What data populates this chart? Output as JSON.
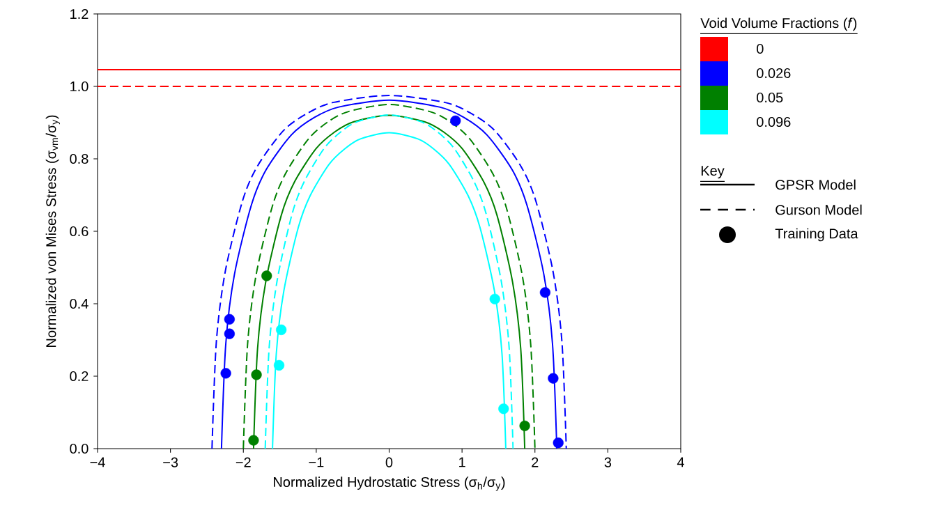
{
  "chart_data": {
    "type": "line",
    "xlabel": "Normalized Hydrostatic Stress (σ$_{h}$/σ$_{y}$)",
    "ylabel": "Normalized von Mises Stress (σ$_{vm}$/σ$_{y}$)",
    "legend_title": "Void Volume Fractions (*f*)",
    "legend": "right",
    "xlim": [
      -4,
      4
    ],
    "xticks": [
      {
        "value": -4,
        "label": "−4"
      },
      {
        "value": -3,
        "label": "−3"
      },
      {
        "value": -2,
        "label": "−2"
      },
      {
        "value": -1,
        "label": "−1"
      },
      0,
      1,
      2,
      3,
      4
    ],
    "ylim": [
      0,
      1.2
    ],
    "yticks": [
      {
        "value": 0,
        "label": "0.0"
      },
      0.2,
      0.4,
      0.6,
      0.8,
      {
        "value": 1,
        "label": "1.0"
      },
      1.2
    ],
    "marker": "none",
    "annotations": [
      "Key",
      "GPSR Model",
      "Gurson Model",
      "Training Data"
    ],
    "series": [
      {
        "name": "0",
        "color": "#ff0000",
        "line_style": "solid",
        "x": [
          -4,
          4
        ],
        "values": [
          1.046,
          1.046
        ]
      },
      {
        "color": "#ff0000",
        "line_style": "dashed",
        "x": [
          -4,
          4
        ],
        "values": [
          1.0,
          1.0
        ]
      },
      {
        "name": "0.026",
        "color": "#0000ff",
        "line_style": "solid",
        "x": [
          -2.3,
          -2.241,
          -2.122,
          -1.889,
          -1.687,
          -1.341,
          -1.027,
          -0.69,
          0,
          0.69,
          1.027,
          1.341,
          1.687,
          1.889,
          2.122,
          2.241,
          2.3
        ],
        "values": [
          0,
          0.289,
          0.481,
          0.673,
          0.77,
          0.866,
          0.914,
          0.943,
          0.962,
          0.943,
          0.914,
          0.866,
          0.77,
          0.673,
          0.481,
          0.289,
          0
        ]
      },
      {
        "color": "#0000ff",
        "line_style": "dashed",
        "x": [
          -2.43,
          -2.371,
          -2.249,
          -2.013,
          -1.806,
          -1.449,
          -1.118,
          -0.758,
          0,
          0.758,
          1.118,
          1.449,
          1.806,
          2.013,
          2.249,
          2.371,
          2.43
        ],
        "values": [
          0,
          0.293,
          0.488,
          0.683,
          0.78,
          0.878,
          0.926,
          0.956,
          0.975,
          0.956,
          0.926,
          0.878,
          0.78,
          0.683,
          0.488,
          0.293,
          0
        ]
      },
      {
        "name": "0.05",
        "color": "#008000",
        "line_style": "solid",
        "x": [
          -1.86,
          -1.805,
          -1.693,
          -1.48,
          -1.299,
          -1.003,
          -0.748,
          -0.491,
          0,
          0.491,
          0.748,
          1.003,
          1.299,
          1.48,
          1.693,
          1.805,
          1.86
        ],
        "values": [
          0,
          0.276,
          0.46,
          0.644,
          0.736,
          0.828,
          0.874,
          0.902,
          0.92,
          0.902,
          0.874,
          0.828,
          0.736,
          0.644,
          0.46,
          0.276,
          0
        ]
      },
      {
        "color": "#008000",
        "line_style": "dashed",
        "x": [
          -2.0,
          -1.943,
          -1.829,
          -1.608,
          -1.419,
          -1.106,
          -0.832,
          -0.549,
          0,
          0.549,
          0.832,
          1.106,
          1.419,
          1.608,
          1.829,
          1.943,
          2.0
        ],
        "values": [
          0,
          0.285,
          0.475,
          0.665,
          0.76,
          0.855,
          0.903,
          0.931,
          0.95,
          0.931,
          0.903,
          0.855,
          0.76,
          0.665,
          0.475,
          0.285,
          0
        ]
      },
      {
        "name": "0.096",
        "color": "#00ffff",
        "line_style": "solid",
        "x": [
          -1.6,
          -1.548,
          -1.444,
          -1.247,
          -1.084,
          -0.824,
          -0.607,
          -0.394,
          0,
          0.394,
          0.607,
          0.824,
          1.084,
          1.247,
          1.444,
          1.548,
          1.6
        ],
        "values": [
          0,
          0.262,
          0.436,
          0.61,
          0.698,
          0.785,
          0.828,
          0.855,
          0.872,
          0.855,
          0.828,
          0.785,
          0.698,
          0.61,
          0.436,
          0.262,
          0
        ]
      },
      {
        "color": "#00ffff",
        "line_style": "dashed",
        "x": [
          -1.7,
          -1.647,
          -1.539,
          -1.335,
          -1.165,
          -0.891,
          -0.659,
          -0.43,
          0,
          0.43,
          0.659,
          0.891,
          1.165,
          1.335,
          1.539,
          1.647,
          1.7
        ],
        "values": [
          0,
          0.276,
          0.461,
          0.645,
          0.737,
          0.829,
          0.875,
          0.903,
          0.921,
          0.903,
          0.875,
          0.829,
          0.737,
          0.645,
          0.461,
          0.276,
          0
        ]
      },
      {
        "type": "scatter",
        "marker": "circle",
        "color": "#0000ff",
        "x": [
          -2.19,
          -2.19,
          -2.24,
          0.91,
          2.14,
          2.25,
          2.32
        ],
        "values": [
          0.357,
          0.317,
          0.208,
          0.905,
          0.431,
          0.194,
          0.016
        ]
      },
      {
        "type": "scatter",
        "marker": "circle",
        "color": "#008000",
        "x": [
          -1.68,
          -1.82,
          -1.86,
          1.86
        ],
        "values": [
          0.477,
          0.204,
          0.023,
          0.063
        ]
      },
      {
        "type": "scatter",
        "marker": "circle",
        "color": "#00ffff",
        "x": [
          -1.48,
          -1.51,
          1.45,
          1.57
        ],
        "values": [
          0.328,
          0.23,
          0.413,
          0.11
        ]
      }
    ]
  }
}
